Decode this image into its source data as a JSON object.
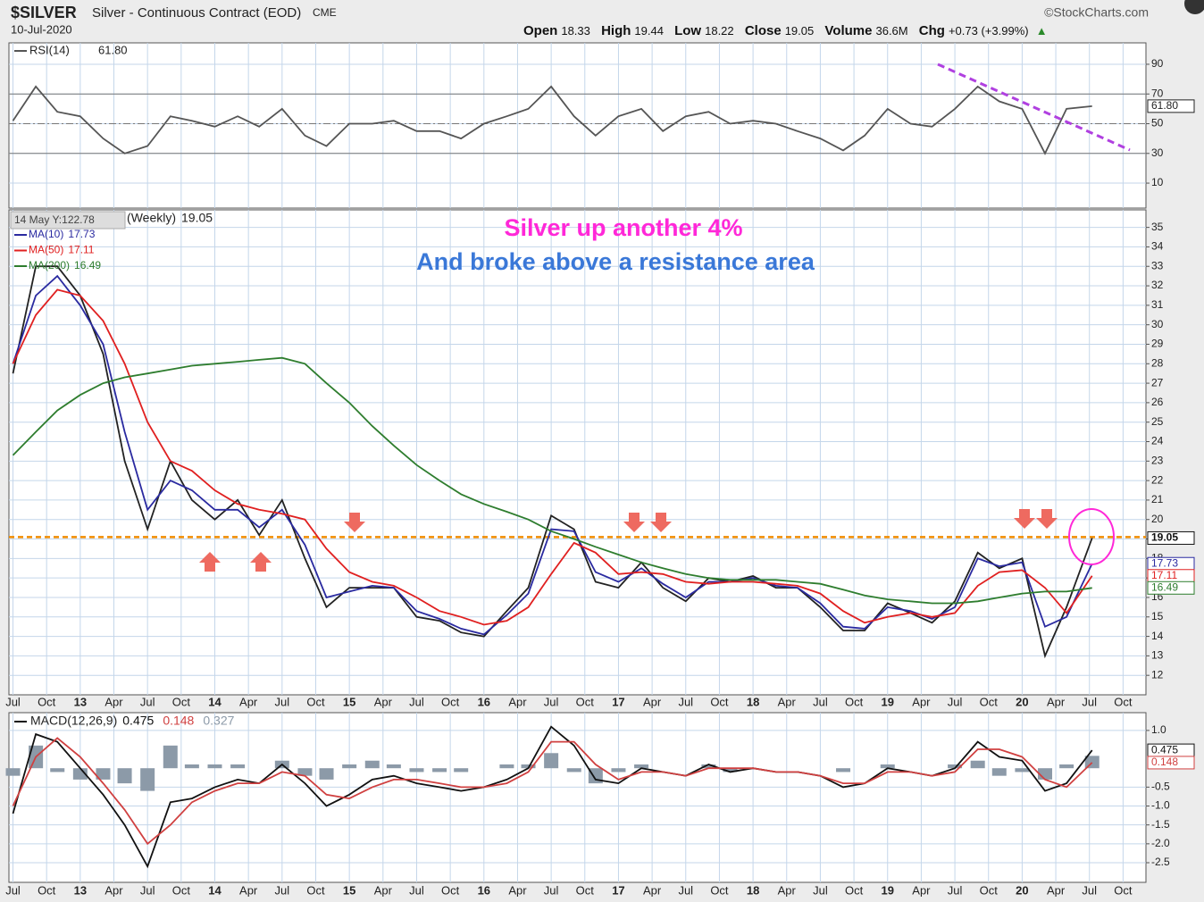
{
  "header": {
    "symbol": "$SILVER",
    "description": "Silver - Continuous Contract (EOD)",
    "exchange": "CME",
    "brand": "©StockCharts.com",
    "date": "10-Jul-2020",
    "quote": [
      {
        "label": "Open",
        "value": "18.33"
      },
      {
        "label": "High",
        "value": "19.44"
      },
      {
        "label": "Low",
        "value": "18.22"
      },
      {
        "label": "Close",
        "value": "19.05"
      },
      {
        "label": "Volume",
        "value": "36.6M"
      },
      {
        "label": "Chg",
        "value": "+0.73 (+3.99%)"
      }
    ]
  },
  "chart_data": [
    {
      "type": "line",
      "x": [
        2012.5,
        2012.67,
        2012.83,
        2013,
        2013.17,
        2013.33,
        2013.5,
        2013.67,
        2013.83,
        2014,
        2014.17,
        2014.33,
        2014.5,
        2014.67,
        2014.83,
        2015,
        2015.17,
        2015.33,
        2015.5,
        2015.67,
        2015.83,
        2016,
        2016.17,
        2016.33,
        2016.5,
        2016.67,
        2016.83,
        2017,
        2017.17,
        2017.33,
        2017.5,
        2017.67,
        2017.83,
        2018,
        2018.17,
        2018.33,
        2018.5,
        2018.67,
        2018.83,
        2019,
        2019.17,
        2019.33,
        2019.5,
        2019.67,
        2019.83,
        2020,
        2020.17,
        2020.33,
        2020.52
      ],
      "xlim": [
        2012.47,
        2020.92
      ],
      "ylim": [
        -6.8,
        104.4
      ],
      "yticks": [
        10,
        30,
        50,
        70,
        90
      ],
      "guides": [
        30,
        50,
        70
      ],
      "grid": true,
      "series": [
        {
          "name": "RSI(14)",
          "color": "#555555",
          "values": [
            52,
            75,
            58,
            55,
            40,
            30,
            35,
            55,
            52,
            48,
            55,
            48,
            60,
            42,
            35,
            50,
            50,
            52,
            45,
            45,
            40,
            50,
            55,
            60,
            75,
            55,
            42,
            55,
            60,
            45,
            55,
            58,
            50,
            52,
            50,
            45,
            40,
            32,
            42,
            60,
            50,
            48,
            60,
            75,
            65,
            60,
            30,
            60,
            61.8
          ],
          "value_labels": [
            null,
            null,
            null,
            null,
            null,
            null,
            null,
            null,
            null,
            null,
            null,
            null,
            null,
            null,
            null,
            null,
            null,
            null,
            null,
            null,
            null,
            null,
            null,
            null,
            null,
            null,
            null,
            null,
            null,
            null,
            null,
            null,
            null,
            null,
            null,
            null,
            null,
            null,
            null,
            null,
            null,
            null,
            null,
            null,
            null,
            null,
            null,
            null,
            "61.80"
          ]
        }
      ]
    },
    {
      "type": "line",
      "tooltip": "14 May Y:122.78",
      "annotations": [
        "Silver up another 4%",
        "And broke above a resistance area"
      ],
      "resistance": 19.1,
      "x": [
        2012.5,
        2012.67,
        2012.83,
        2013,
        2013.17,
        2013.33,
        2013.5,
        2013.67,
        2013.83,
        2014,
        2014.17,
        2014.33,
        2014.5,
        2014.67,
        2014.83,
        2015,
        2015.17,
        2015.33,
        2015.5,
        2015.67,
        2015.83,
        2016,
        2016.17,
        2016.33,
        2016.5,
        2016.67,
        2016.83,
        2017,
        2017.17,
        2017.33,
        2017.5,
        2017.67,
        2017.83,
        2018,
        2018.17,
        2018.33,
        2018.5,
        2018.67,
        2018.83,
        2019,
        2019.17,
        2019.33,
        2019.5,
        2019.67,
        2019.83,
        2020,
        2020.17,
        2020.33,
        2020.52
      ],
      "xlim": [
        2012.47,
        2020.92
      ],
      "xticks": [
        {
          "value": 2012.5,
          "label": "Jul"
        },
        {
          "value": 2012.75,
          "label": "Oct"
        },
        {
          "value": 2013,
          "label": "13"
        },
        {
          "value": 2013.25,
          "label": "Apr"
        },
        {
          "value": 2013.5,
          "label": "Jul"
        },
        {
          "value": 2013.75,
          "label": "Oct"
        },
        {
          "value": 2014,
          "label": "14"
        },
        {
          "value": 2014.25,
          "label": "Apr"
        },
        {
          "value": 2014.5,
          "label": "Jul"
        },
        {
          "value": 2014.75,
          "label": "Oct"
        },
        {
          "value": 2015,
          "label": "15"
        },
        {
          "value": 2015.25,
          "label": "Apr"
        },
        {
          "value": 2015.5,
          "label": "Jul"
        },
        {
          "value": 2015.75,
          "label": "Oct"
        },
        {
          "value": 2016,
          "label": "16"
        },
        {
          "value": 2016.25,
          "label": "Apr"
        },
        {
          "value": 2016.5,
          "label": "Jul"
        },
        {
          "value": 2016.75,
          "label": "Oct"
        },
        {
          "value": 2017,
          "label": "17"
        },
        {
          "value": 2017.25,
          "label": "Apr"
        },
        {
          "value": 2017.5,
          "label": "Jul"
        },
        {
          "value": 2017.75,
          "label": "Oct"
        },
        {
          "value": 2018,
          "label": "18"
        },
        {
          "value": 2018.25,
          "label": "Apr"
        },
        {
          "value": 2018.5,
          "label": "Jul"
        },
        {
          "value": 2018.75,
          "label": "Oct"
        },
        {
          "value": 2019,
          "label": "19"
        },
        {
          "value": 2019.25,
          "label": "Apr"
        },
        {
          "value": 2019.5,
          "label": "Jul"
        },
        {
          "value": 2019.75,
          "label": "Oct"
        },
        {
          "value": 2020,
          "label": "20"
        },
        {
          "value": 2020.25,
          "label": "Apr"
        },
        {
          "value": 2020.5,
          "label": "Jul"
        },
        {
          "value": 2020.75,
          "label": "Oct"
        }
      ],
      "ylim": [
        11,
        35.9
      ],
      "yticks": [
        12,
        13,
        14,
        15,
        16,
        17,
        18,
        19,
        20,
        21,
        22,
        23,
        24,
        25,
        26,
        27,
        28,
        29,
        30,
        31,
        32,
        33,
        34,
        35
      ],
      "grid": true,
      "series": [
        {
          "name": "$SILVER (Weekly)",
          "color": "#222222",
          "values": [
            27.5,
            33,
            33,
            31.5,
            28.5,
            23,
            19.5,
            23,
            21,
            20,
            21,
            19.2,
            21,
            18,
            15.5,
            16.5,
            16.5,
            16.5,
            15,
            14.8,
            14.2,
            14,
            15.3,
            16.5,
            20.2,
            19.5,
            16.8,
            16.5,
            17.8,
            16.5,
            15.8,
            17,
            16.8,
            17.1,
            16.5,
            16.5,
            15.5,
            14.3,
            14.3,
            15.7,
            15.2,
            14.7,
            15.8,
            18.3,
            17.5,
            18,
            13,
            15.5,
            19.05
          ]
        },
        {
          "name": "MA(10)",
          "color": "#2a2aa0",
          "values": [
            28,
            31.5,
            32.5,
            31,
            29,
            24.5,
            20.5,
            22,
            21.5,
            20.5,
            20.5,
            19.6,
            20.5,
            18.7,
            16,
            16.3,
            16.6,
            16.5,
            15.3,
            14.9,
            14.4,
            14.1,
            15.1,
            16.2,
            19.5,
            19.4,
            17.3,
            16.8,
            17.5,
            16.7,
            16,
            16.8,
            16.8,
            17,
            16.6,
            16.5,
            15.7,
            14.5,
            14.4,
            15.5,
            15.3,
            14.9,
            15.5,
            18,
            17.6,
            17.8,
            14.5,
            15,
            17.73
          ]
        },
        {
          "name": "MA(50)",
          "color": "#e02020",
          "values": [
            28,
            30.5,
            31.8,
            31.5,
            30.2,
            28,
            25,
            23,
            22.5,
            21.5,
            20.8,
            20.5,
            20.3,
            20,
            18.5,
            17.3,
            16.8,
            16.6,
            16,
            15.3,
            15.0,
            14.6,
            14.8,
            15.5,
            17.2,
            18.8,
            18.3,
            17.2,
            17.3,
            17.2,
            16.8,
            16.7,
            16.8,
            16.8,
            16.7,
            16.6,
            16.2,
            15.3,
            14.7,
            15.0,
            15.2,
            15.0,
            15.2,
            16.6,
            17.3,
            17.4,
            16.5,
            15.2,
            17.11
          ]
        },
        {
          "name": "MA(200)",
          "color": "#2e7d2e",
          "values": [
            23.3,
            24.5,
            25.6,
            26.4,
            27.0,
            27.3,
            27.5,
            27.7,
            27.9,
            28.0,
            28.1,
            28.2,
            28.3,
            28.0,
            27.0,
            26.0,
            24.8,
            23.8,
            22.8,
            22.0,
            21.3,
            20.8,
            20.4,
            20.0,
            19.4,
            19.0,
            18.6,
            18.2,
            17.8,
            17.5,
            17.2,
            17.0,
            16.9,
            16.9,
            16.9,
            16.8,
            16.7,
            16.4,
            16.1,
            15.9,
            15.8,
            15.7,
            15.7,
            15.8,
            16.0,
            16.2,
            16.3,
            16.3,
            16.49
          ]
        }
      ]
    },
    {
      "type": "line",
      "x": [
        2012.5,
        2012.67,
        2012.83,
        2013,
        2013.17,
        2013.33,
        2013.5,
        2013.67,
        2013.83,
        2014,
        2014.17,
        2014.33,
        2014.5,
        2014.67,
        2014.83,
        2015,
        2015.17,
        2015.33,
        2015.5,
        2015.67,
        2015.83,
        2016,
        2016.17,
        2016.33,
        2016.5,
        2016.67,
        2016.83,
        2017,
        2017.17,
        2017.33,
        2017.5,
        2017.67,
        2017.83,
        2018,
        2018.17,
        2018.33,
        2018.5,
        2018.67,
        2018.83,
        2019,
        2019.17,
        2019.33,
        2019.5,
        2019.67,
        2019.83,
        2020,
        2020.17,
        2020.33,
        2020.52
      ],
      "xlim": [
        2012.47,
        2020.92
      ],
      "xticks": [
        {
          "value": 2012.5,
          "label": "Jul"
        },
        {
          "value": 2012.75,
          "label": "Oct"
        },
        {
          "value": 2013,
          "label": "13"
        },
        {
          "value": 2013.25,
          "label": "Apr"
        },
        {
          "value": 2013.5,
          "label": "Jul"
        },
        {
          "value": 2013.75,
          "label": "Oct"
        },
        {
          "value": 2014,
          "label": "14"
        },
        {
          "value": 2014.25,
          "label": "Apr"
        },
        {
          "value": 2014.5,
          "label": "Jul"
        },
        {
          "value": 2014.75,
          "label": "Oct"
        },
        {
          "value": 2015,
          "label": "15"
        },
        {
          "value": 2015.25,
          "label": "Apr"
        },
        {
          "value": 2015.5,
          "label": "Jul"
        },
        {
          "value": 2015.75,
          "label": "Oct"
        },
        {
          "value": 2016,
          "label": "16"
        },
        {
          "value": 2016.25,
          "label": "Apr"
        },
        {
          "value": 2016.5,
          "label": "Jul"
        },
        {
          "value": 2016.75,
          "label": "Oct"
        },
        {
          "value": 2017,
          "label": "17"
        },
        {
          "value": 2017.25,
          "label": "Apr"
        },
        {
          "value": 2017.5,
          "label": "Jul"
        },
        {
          "value": 2017.75,
          "label": "Oct"
        },
        {
          "value": 2018,
          "label": "18"
        },
        {
          "value": 2018.25,
          "label": "Apr"
        },
        {
          "value": 2018.5,
          "label": "Jul"
        },
        {
          "value": 2018.75,
          "label": "Oct"
        },
        {
          "value": 2019,
          "label": "19"
        },
        {
          "value": 2019.25,
          "label": "Apr"
        },
        {
          "value": 2019.5,
          "label": "Jul"
        },
        {
          "value": 2019.75,
          "label": "Oct"
        },
        {
          "value": 2020,
          "label": "20"
        },
        {
          "value": 2020.25,
          "label": "Apr"
        },
        {
          "value": 2020.5,
          "label": "Jul"
        },
        {
          "value": 2020.75,
          "label": "Oct"
        }
      ],
      "ylim": [
        -3.02,
        1.47
      ],
      "yticks": [
        {
          "value": 1,
          "label": "1.0"
        },
        -0.5,
        {
          "value": -1,
          "label": "-1.0"
        },
        -1.5,
        {
          "value": -2,
          "label": "-2.0"
        },
        -2.5
      ],
      "grid": true,
      "series": [
        {
          "name": "MACD(12,26,9)",
          "color": "#111111",
          "values": [
            -1.2,
            0.9,
            0.7,
            0.0,
            -0.7,
            -1.5,
            -2.6,
            -0.9,
            -0.8,
            -0.5,
            -0.3,
            -0.4,
            0.1,
            -0.4,
            -1.0,
            -0.7,
            -0.3,
            -0.2,
            -0.4,
            -0.5,
            -0.6,
            -0.5,
            -0.3,
            0.0,
            1.1,
            0.6,
            -0.3,
            -0.4,
            0.0,
            -0.1,
            -0.2,
            0.1,
            -0.1,
            0.0,
            -0.1,
            -0.1,
            -0.2,
            -0.5,
            -0.4,
            0.0,
            -0.1,
            -0.2,
            0.0,
            0.7,
            0.3,
            0.2,
            -0.6,
            -0.4,
            0.475
          ]
        },
        {
          "color": "#d04040",
          "values": [
            -1.0,
            0.3,
            0.8,
            0.3,
            -0.4,
            -1.1,
            -2.0,
            -1.5,
            -0.9,
            -0.6,
            -0.4,
            -0.4,
            -0.1,
            -0.2,
            -0.7,
            -0.8,
            -0.5,
            -0.3,
            -0.3,
            -0.4,
            -0.5,
            -0.5,
            -0.4,
            -0.1,
            0.7,
            0.7,
            0.1,
            -0.3,
            -0.1,
            -0.1,
            -0.2,
            0.0,
            0.0,
            0.0,
            -0.1,
            -0.1,
            -0.2,
            -0.4,
            -0.4,
            -0.1,
            -0.1,
            -0.2,
            -0.1,
            0.5,
            0.5,
            0.3,
            -0.3,
            -0.5,
            0.148
          ]
        },
        {
          "type": "bar",
          "color": "#8c9aa8",
          "values": [
            -0.2,
            0.6,
            -0.1,
            -0.3,
            -0.3,
            -0.4,
            -0.6,
            0.6,
            0.1,
            0.1,
            0.1,
            0.0,
            0.2,
            -0.2,
            -0.3,
            0.1,
            0.2,
            0.1,
            -0.1,
            -0.1,
            -0.1,
            0.0,
            0.1,
            0.1,
            0.4,
            -0.1,
            -0.4,
            -0.1,
            0.1,
            0.0,
            0.0,
            0.1,
            -0.1,
            0.0,
            0.0,
            0.0,
            0.0,
            -0.1,
            0.0,
            0.1,
            0.0,
            0.0,
            0.1,
            0.2,
            -0.2,
            -0.1,
            -0.3,
            0.1,
            0.327
          ]
        }
      ]
    }
  ]
}
